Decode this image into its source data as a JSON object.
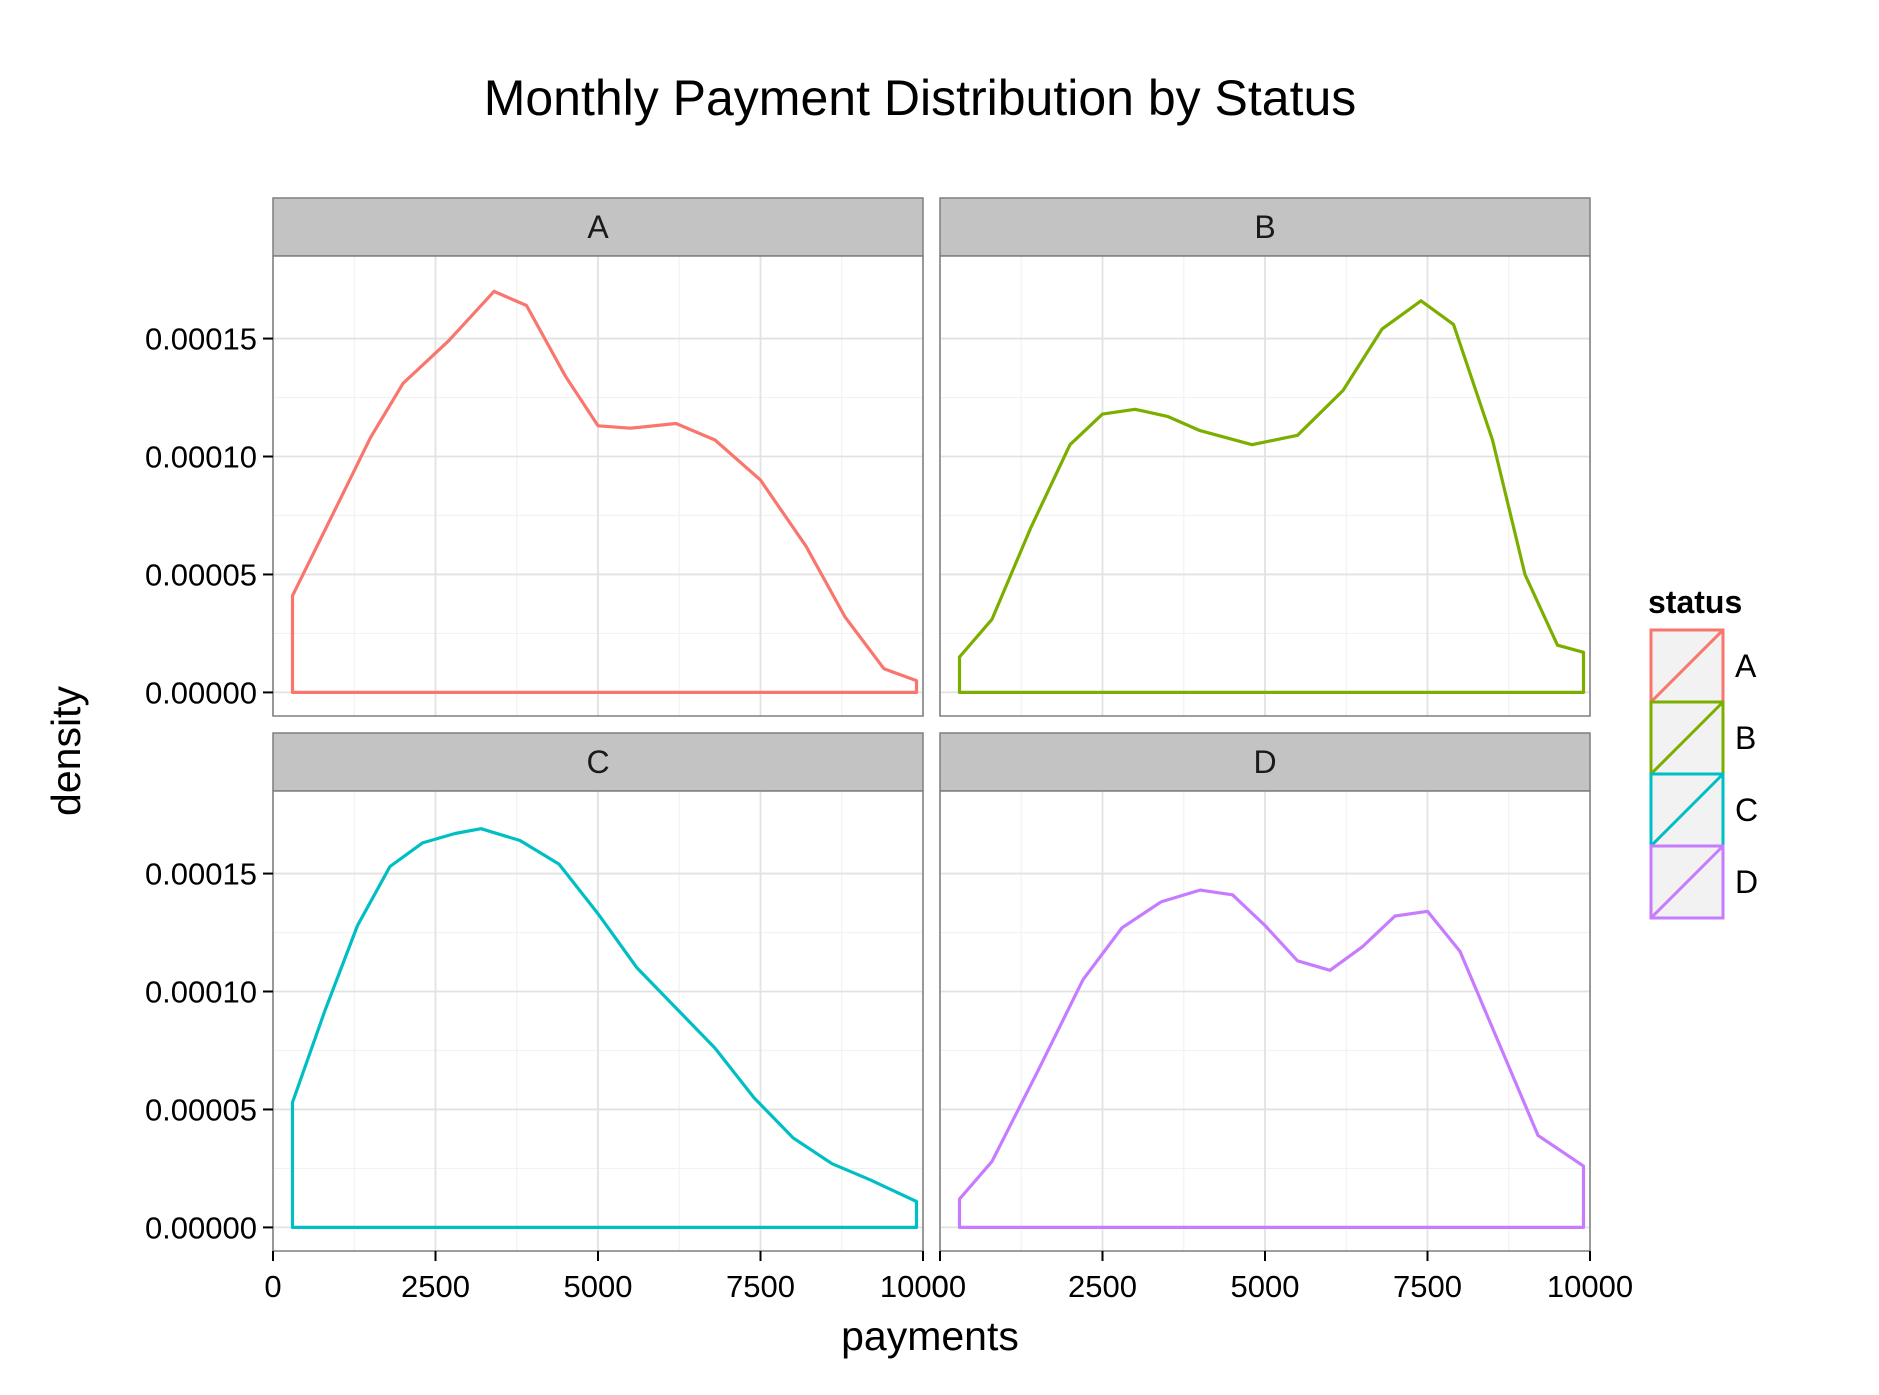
{
  "chart_data": {
    "type": "line",
    "title": "Monthly Payment Distribution by Status",
    "xlabel": "payments",
    "ylabel": "density",
    "xlim": [
      0,
      10000
    ],
    "ylim": [
      -1e-05,
      0.000185
    ],
    "x_ticks": [
      0,
      2500,
      5000,
      7500,
      10000
    ],
    "x_tick_labels": [
      "0",
      "2500",
      "5000",
      "7500",
      "10000"
    ],
    "y_ticks": [
      0,
      5e-05,
      0.0001,
      0.00015
    ],
    "y_tick_labels": [
      "0.00000",
      "0.00005",
      "0.00010",
      "0.00015"
    ],
    "grid": true,
    "legend": {
      "title": "status",
      "position": "right"
    },
    "panels": [
      {
        "label": "A",
        "color": "#F8766D",
        "x": [
          300,
          1000,
          1500,
          2000,
          2700,
          3400,
          3900,
          4500,
          5000,
          5500,
          6200,
          6800,
          7500,
          8200,
          8800,
          9400,
          9900
        ],
        "y": [
          4.1e-05,
          8e-05,
          0.000108,
          0.000131,
          0.000149,
          0.00017,
          0.000164,
          0.000134,
          0.000113,
          0.000112,
          0.000114,
          0.000107,
          9e-05,
          6.2e-05,
          3.2e-05,
          1e-05,
          5e-06
        ]
      },
      {
        "label": "B",
        "color": "#7CAE00",
        "x": [
          300,
          800,
          1400,
          2000,
          2500,
          3000,
          3500,
          4000,
          4800,
          5500,
          6200,
          6800,
          7400,
          7900,
          8500,
          9000,
          9500,
          9900
        ],
        "y": [
          1.5e-05,
          3.1e-05,
          7e-05,
          0.000105,
          0.000118,
          0.00012,
          0.000117,
          0.000111,
          0.000105,
          0.000109,
          0.000128,
          0.000154,
          0.000166,
          0.000156,
          0.000107,
          5e-05,
          2e-05,
          1.7e-05
        ]
      },
      {
        "label": "C",
        "color": "#00BFC4",
        "x": [
          300,
          800,
          1300,
          1800,
          2300,
          2800,
          3200,
          3800,
          4400,
          5000,
          5600,
          6200,
          6800,
          7400,
          8000,
          8600,
          9200,
          9900
        ],
        "y": [
          5.3e-05,
          9.2e-05,
          0.000128,
          0.000153,
          0.000163,
          0.000167,
          0.000169,
          0.000164,
          0.000154,
          0.000133,
          0.00011,
          9.3e-05,
          7.6e-05,
          5.5e-05,
          3.8e-05,
          2.7e-05,
          2e-05,
          1.1e-05
        ]
      },
      {
        "label": "D",
        "color": "#C77CFF",
        "x": [
          300,
          800,
          1500,
          2200,
          2800,
          3400,
          4000,
          4500,
          5000,
          5500,
          6000,
          6500,
          7000,
          7500,
          8000,
          8600,
          9200,
          9900
        ],
        "y": [
          1.2e-05,
          2.8e-05,
          6.6e-05,
          0.000105,
          0.000127,
          0.000138,
          0.000143,
          0.000141,
          0.000128,
          0.000113,
          0.000109,
          0.000119,
          0.000132,
          0.000134,
          0.000117,
          7.8e-05,
          3.9e-05,
          2.6e-05
        ]
      }
    ]
  }
}
